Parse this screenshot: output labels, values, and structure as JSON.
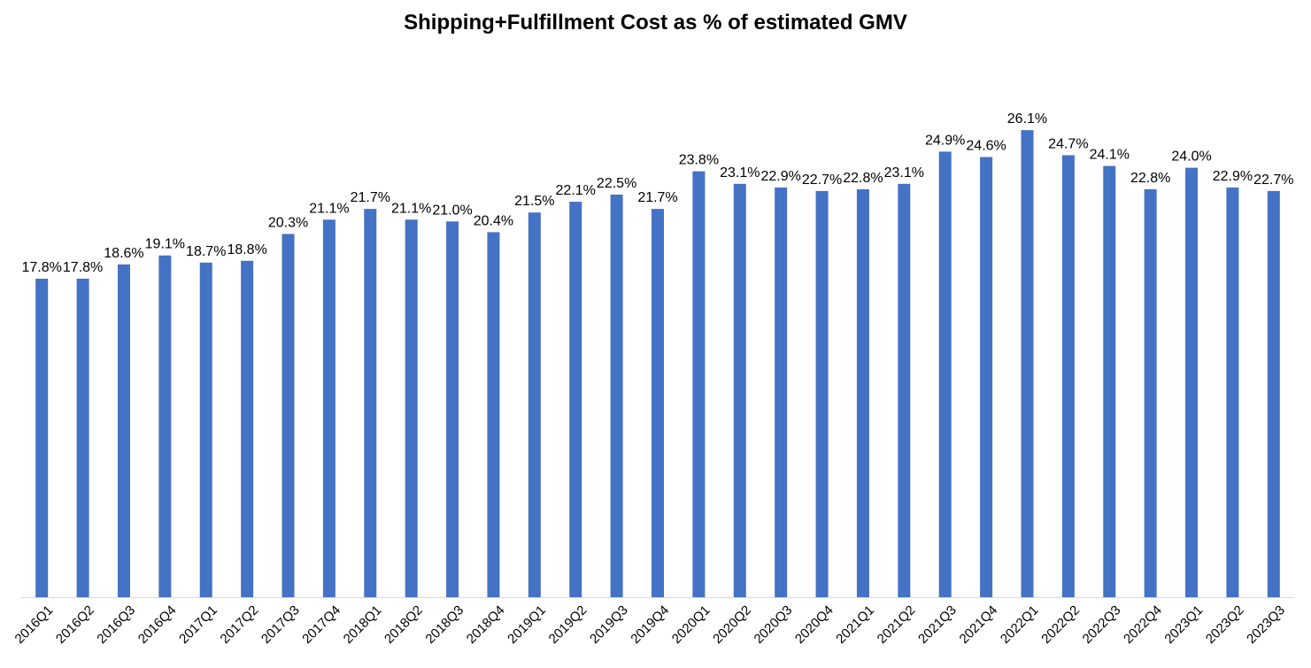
{
  "chart_data": {
    "type": "bar",
    "title": "Shipping+Fulfillment Cost as % of estimated GMV",
    "xlabel": "",
    "ylabel": "",
    "ylim": [
      0,
      30
    ],
    "grid": false,
    "legend": "none",
    "bar_color": "#4472C4",
    "value_format": "%",
    "categories": [
      "2016Q1",
      "2016Q2",
      "2016Q3",
      "2016Q4",
      "2017Q1",
      "2017Q2",
      "2017Q3",
      "2017Q4",
      "2018Q1",
      "2018Q2",
      "2018Q3",
      "2018Q4",
      "2019Q1",
      "2019Q2",
      "2019Q3",
      "2019Q4",
      "2020Q1",
      "2020Q2",
      "2020Q3",
      "2020Q4",
      "2021Q1",
      "2021Q2",
      "2021Q3",
      "2021Q4",
      "2022Q1",
      "2022Q2",
      "2022Q3",
      "2022Q4",
      "2023Q1",
      "2023Q2",
      "2023Q3"
    ],
    "values": [
      17.8,
      17.8,
      18.6,
      19.1,
      18.7,
      18.8,
      20.3,
      21.1,
      21.7,
      21.1,
      21.0,
      20.4,
      21.5,
      22.1,
      22.5,
      21.7,
      23.8,
      23.1,
      22.9,
      22.7,
      22.8,
      23.1,
      24.9,
      24.6,
      26.1,
      24.7,
      24.1,
      22.8,
      24.0,
      22.9,
      22.7
    ]
  }
}
